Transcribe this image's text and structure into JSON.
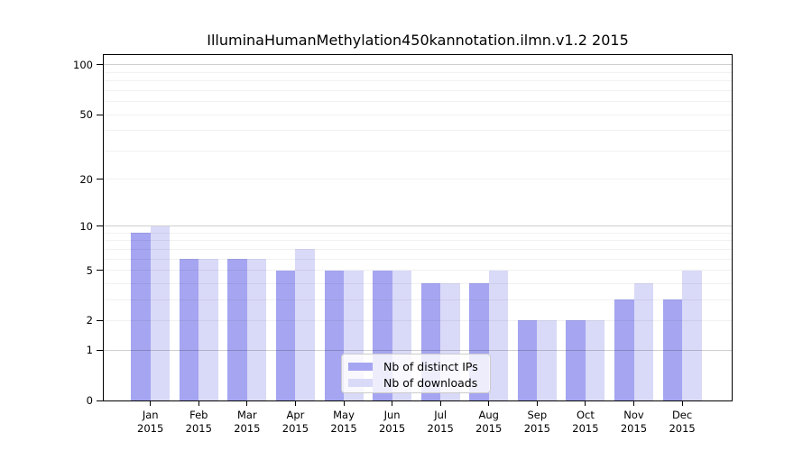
{
  "title": "IlluminaHumanMethylation450kannotation.ilmn.v1.2 2015",
  "chart_data": {
    "type": "bar",
    "title": "IlluminaHumanMethylation450kannotation.ilmn.v1.2 2015",
    "categories": [
      "Jan",
      "Feb",
      "Mar",
      "Apr",
      "May",
      "Jun",
      "Jul",
      "Aug",
      "Sep",
      "Oct",
      "Nov",
      "Dec"
    ],
    "year_label": "2015",
    "series": [
      {
        "name": "Nb of distinct IPs",
        "color": "#a5a5f1",
        "values": [
          9,
          6,
          6,
          5,
          5,
          5,
          4,
          4,
          2,
          2,
          3,
          3
        ]
      },
      {
        "name": "Nb of downloads",
        "color": "#d9d9f8",
        "values": [
          10,
          6,
          6,
          7,
          5,
          5,
          4,
          5,
          2,
          2,
          4,
          5
        ]
      }
    ],
    "xlabel": "",
    "ylabel": "",
    "y_scale": "log10(value+1)",
    "y_ticks": [
      0,
      1,
      2,
      5,
      10,
      20,
      50,
      100
    ],
    "ylim": [
      0,
      115
    ],
    "grid": "on",
    "grid_major_values": [
      1,
      10,
      100
    ],
    "grid_minor_values": [
      2,
      3,
      4,
      5,
      6,
      7,
      8,
      9,
      20,
      30,
      40,
      50,
      60,
      70,
      80,
      90
    ],
    "legend_position": "lower center",
    "legend_entries": [
      "Nb of distinct IPs",
      "Nb of downloads"
    ]
  }
}
